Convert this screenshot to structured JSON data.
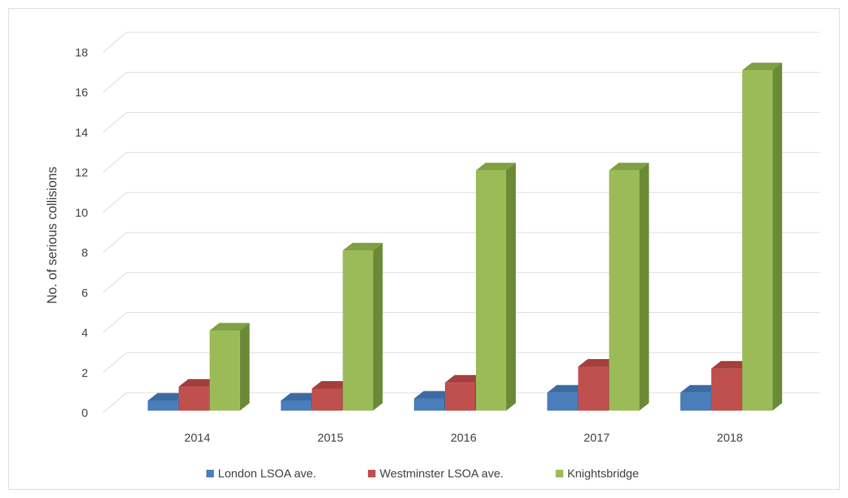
{
  "chart_data": {
    "type": "bar",
    "title": "",
    "xlabel": "",
    "ylabel": "No. of serious collisions",
    "categories": [
      "2014",
      "2015",
      "2016",
      "2017",
      "2018"
    ],
    "ylim": [
      0,
      18
    ],
    "yticks": [
      "0",
      "2",
      "4",
      "6",
      "8",
      "10",
      "12",
      "14",
      "16",
      "18"
    ],
    "grid": true,
    "legend_position": "bottom",
    "three_d": true,
    "series": [
      {
        "name": "London LSOA ave.",
        "values": [
          0.5,
          0.5,
          0.6,
          0.9,
          0.9
        ],
        "color": "#4a7ebb",
        "side_color": "#2f5a8c",
        "top_color": "#3c6aa3"
      },
      {
        "name": "Westminster LSOA ave.",
        "values": [
          1.2,
          1.1,
          1.4,
          2.2,
          2.1
        ],
        "color": "#c0504d",
        "side_color": "#8c3432",
        "top_color": "#a33f3c"
      },
      {
        "name": "Knightsbridge",
        "values": [
          4,
          8,
          12,
          12,
          17
        ],
        "color": "#9bbb59",
        "side_color": "#6b8a36",
        "top_color": "#7fa043"
      }
    ]
  }
}
